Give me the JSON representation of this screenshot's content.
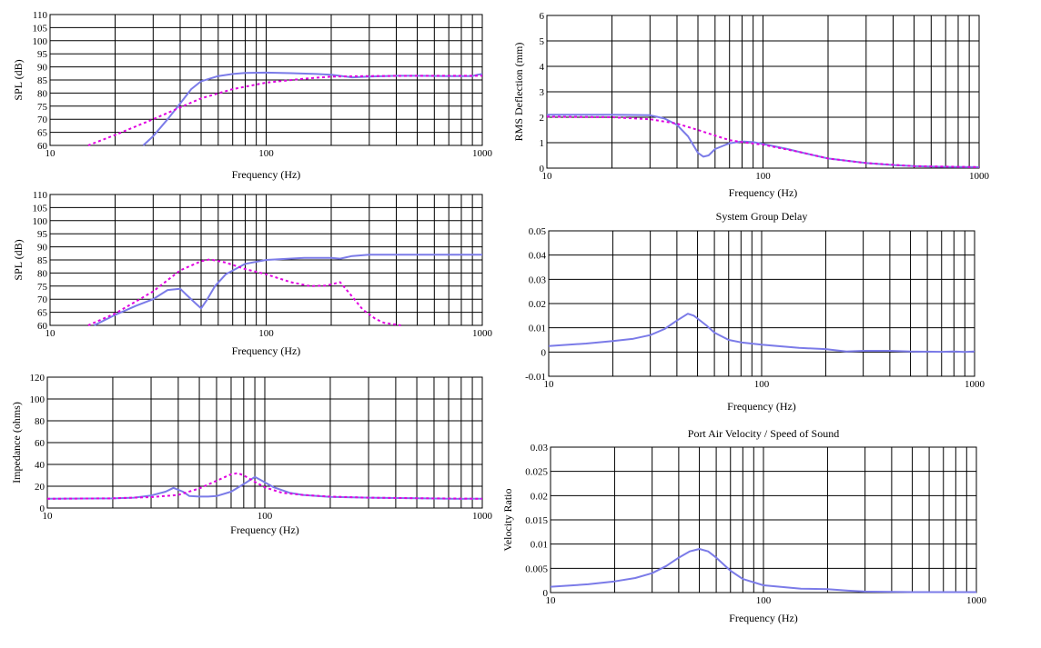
{
  "colors": {
    "series_solid": "#7b7be8",
    "series_dashed": "#e000e0",
    "grid": "#000000"
  },
  "chart_data": [
    {
      "id": "spl1",
      "type": "line",
      "xlabel": "Frequency (Hz)",
      "ylabel": "SPL (dB)",
      "xscale": "log",
      "xlim": [
        10,
        1000
      ],
      "ylim": [
        60,
        110
      ],
      "xticks": [
        10,
        100,
        1000
      ],
      "yticks": [
        60,
        65,
        70,
        75,
        80,
        85,
        90,
        95,
        100,
        105,
        110
      ],
      "series": [
        {
          "style": "solid",
          "points": [
            [
              27,
              60
            ],
            [
              30,
              63.5
            ],
            [
              35,
              70
            ],
            [
              40,
              76
            ],
            [
              45,
              81.5
            ],
            [
              50,
              84.5
            ],
            [
              60,
              86.5
            ],
            [
              70,
              87.3
            ],
            [
              80,
              87.7
            ],
            [
              100,
              87.8
            ],
            [
              130,
              87.6
            ],
            [
              170,
              87.3
            ],
            [
              200,
              87
            ],
            [
              250,
              86
            ],
            [
              300,
              86.3
            ],
            [
              400,
              86.6
            ],
            [
              500,
              86.6
            ],
            [
              700,
              86.5
            ],
            [
              900,
              86.5
            ],
            [
              950,
              87
            ],
            [
              1000,
              87.3
            ]
          ]
        },
        {
          "style": "dashed",
          "points": [
            [
              15,
              60
            ],
            [
              20,
              64
            ],
            [
              30,
              70
            ],
            [
              40,
              74.5
            ],
            [
              50,
              78
            ],
            [
              70,
              81.5
            ],
            [
              100,
              84
            ],
            [
              150,
              85.5
            ],
            [
              200,
              86.3
            ],
            [
              300,
              86.5
            ],
            [
              500,
              86.6
            ],
            [
              1000,
              86.6
            ]
          ]
        }
      ]
    },
    {
      "id": "spl2",
      "type": "line",
      "xlabel": "Frequency (Hz)",
      "ylabel": "SPL (dB)",
      "xscale": "log",
      "xlim": [
        10,
        1000
      ],
      "ylim": [
        60,
        110
      ],
      "xticks": [
        10,
        100,
        1000
      ],
      "yticks": [
        60,
        65,
        70,
        75,
        80,
        85,
        90,
        95,
        100,
        105,
        110
      ],
      "series": [
        {
          "style": "solid",
          "points": [
            [
              16,
              60
            ],
            [
              20,
              64
            ],
            [
              25,
              67.5
            ],
            [
              30,
              70
            ],
            [
              35,
              73.5
            ],
            [
              40,
              74
            ],
            [
              43,
              71.5
            ],
            [
              47,
              68.5
            ],
            [
              50,
              66.5
            ],
            [
              53,
              69.5
            ],
            [
              58,
              75
            ],
            [
              65,
              79.5
            ],
            [
              80,
              83.5
            ],
            [
              100,
              85
            ],
            [
              150,
              85.8
            ],
            [
              200,
              85.8
            ],
            [
              220,
              85.5
            ],
            [
              250,
              86.5
            ],
            [
              300,
              87
            ],
            [
              500,
              87
            ],
            [
              1000,
              87
            ]
          ]
        },
        {
          "style": "dashed",
          "points": [
            [
              15,
              60
            ],
            [
              20,
              64.5
            ],
            [
              30,
              73
            ],
            [
              40,
              81
            ],
            [
              50,
              84.5
            ],
            [
              55,
              85.2
            ],
            [
              65,
              84
            ],
            [
              80,
              81.5
            ],
            [
              100,
              79.5
            ],
            [
              130,
              76.5
            ],
            [
              160,
              75
            ],
            [
              190,
              75.2
            ],
            [
              220,
              76.5
            ],
            [
              250,
              71
            ],
            [
              280,
              66
            ],
            [
              320,
              62.5
            ],
            [
              350,
              61
            ],
            [
              420,
              60
            ]
          ]
        }
      ]
    },
    {
      "id": "imp",
      "type": "line",
      "xlabel": "Frequency (Hz)",
      "ylabel": "Impedance (ohms)",
      "xscale": "log",
      "xlim": [
        10,
        1000
      ],
      "ylim": [
        0,
        120
      ],
      "xticks": [
        10,
        100,
        1000
      ],
      "yticks": [
        0,
        20,
        40,
        60,
        80,
        100,
        120
      ],
      "series": [
        {
          "style": "solid",
          "points": [
            [
              10,
              8.5
            ],
            [
              20,
              8.8
            ],
            [
              25,
              9.5
            ],
            [
              30,
              11.5
            ],
            [
              35,
              15
            ],
            [
              38,
              18.5
            ],
            [
              42,
              15
            ],
            [
              45,
              11
            ],
            [
              50,
              10.5
            ],
            [
              55,
              10.5
            ],
            [
              60,
              11
            ],
            [
              70,
              15
            ],
            [
              80,
              22
            ],
            [
              90,
              28.5
            ],
            [
              95,
              26
            ],
            [
              110,
              19
            ],
            [
              130,
              14
            ],
            [
              150,
              12
            ],
            [
              200,
              10.2
            ],
            [
              300,
              9.5
            ],
            [
              500,
              9
            ],
            [
              700,
              8.6
            ],
            [
              800,
              8.4
            ],
            [
              850,
              8.5
            ],
            [
              1000,
              8.6
            ]
          ]
        },
        {
          "style": "dashed",
          "points": [
            [
              10,
              8.5
            ],
            [
              20,
              8.9
            ],
            [
              30,
              10
            ],
            [
              40,
              12
            ],
            [
              50,
              18
            ],
            [
              60,
              25
            ],
            [
              70,
              31
            ],
            [
              75,
              32
            ],
            [
              80,
              30
            ],
            [
              90,
              24
            ],
            [
              100,
              19
            ],
            [
              120,
              14
            ],
            [
              150,
              12
            ],
            [
              200,
              10.5
            ],
            [
              300,
              9.5
            ],
            [
              500,
              9
            ],
            [
              1000,
              8.5
            ]
          ]
        }
      ]
    },
    {
      "id": "rms",
      "type": "line",
      "xlabel": "Frequency (Hz)",
      "ylabel": "RMS Deflection (mm)",
      "xscale": "log",
      "xlim": [
        10,
        1000
      ],
      "ylim": [
        0,
        6
      ],
      "xticks": [
        10,
        100,
        1000
      ],
      "yticks": [
        0,
        1,
        2,
        3,
        4,
        5,
        6
      ],
      "series": [
        {
          "style": "solid",
          "points": [
            [
              10,
              2.1
            ],
            [
              20,
              2.1
            ],
            [
              30,
              2.08
            ],
            [
              35,
              1.95
            ],
            [
              40,
              1.7
            ],
            [
              45,
              1.25
            ],
            [
              50,
              0.6
            ],
            [
              53,
              0.45
            ],
            [
              56,
              0.5
            ],
            [
              60,
              0.75
            ],
            [
              70,
              0.98
            ],
            [
              80,
              1.05
            ],
            [
              90,
              1.02
            ],
            [
              100,
              0.95
            ],
            [
              130,
              0.75
            ],
            [
              150,
              0.62
            ],
            [
              200,
              0.38
            ],
            [
              300,
              0.2
            ],
            [
              400,
              0.12
            ],
            [
              500,
              0.08
            ],
            [
              700,
              0.05
            ],
            [
              1000,
              0.04
            ]
          ]
        },
        {
          "style": "dashed",
          "points": [
            [
              10,
              2.02
            ],
            [
              20,
              2.0
            ],
            [
              30,
              1.92
            ],
            [
              40,
              1.75
            ],
            [
              50,
              1.5
            ],
            [
              60,
              1.28
            ],
            [
              70,
              1.1
            ],
            [
              80,
              1.02
            ],
            [
              100,
              0.92
            ],
            [
              150,
              0.62
            ],
            [
              200,
              0.38
            ],
            [
              300,
              0.2
            ],
            [
              500,
              0.08
            ],
            [
              1000,
              0.04
            ]
          ]
        }
      ]
    },
    {
      "id": "gd",
      "type": "line",
      "title": "System Group Delay",
      "xlabel": "Frequency (Hz)",
      "ylabel": "",
      "xscale": "log",
      "xlim": [
        10,
        1000
      ],
      "ylim": [
        -0.01,
        0.05
      ],
      "xticks": [
        10,
        100,
        1000
      ],
      "yticks": [
        -0.01,
        0,
        0.01,
        0.02,
        0.03,
        0.04,
        0.05
      ],
      "ytick_labels": [
        "-0.01",
        "0",
        "0.01",
        "0.02",
        "0.03",
        "0.04",
        "0.05"
      ],
      "series": [
        {
          "style": "solid",
          "points": [
            [
              10,
              0.0025
            ],
            [
              15,
              0.0035
            ],
            [
              20,
              0.0045
            ],
            [
              25,
              0.0055
            ],
            [
              30,
              0.007
            ],
            [
              35,
              0.0095
            ],
            [
              40,
              0.013
            ],
            [
              45,
              0.0158
            ],
            [
              48,
              0.015
            ],
            [
              50,
              0.0138
            ],
            [
              55,
              0.011
            ],
            [
              60,
              0.008
            ],
            [
              70,
              0.005
            ],
            [
              80,
              0.004
            ],
            [
              100,
              0.003
            ],
            [
              150,
              0.0017
            ],
            [
              200,
              0.0012
            ],
            [
              220,
              0.0008
            ],
            [
              250,
              0.0002
            ],
            [
              300,
              0.0005
            ],
            [
              400,
              0.0005
            ],
            [
              500,
              0.0002
            ],
            [
              700,
              0.0001
            ],
            [
              800,
              0.0002
            ],
            [
              900,
              0
            ],
            [
              1000,
              0.0002
            ]
          ]
        }
      ]
    },
    {
      "id": "port",
      "type": "line",
      "title": "Port Air Velocity / Speed of Sound",
      "xlabel": "Frequency (Hz)",
      "ylabel": "Velocity Ratio",
      "xscale": "log",
      "xlim": [
        10,
        1000
      ],
      "ylim": [
        0,
        0.03
      ],
      "xticks": [
        10,
        100,
        1000
      ],
      "yticks": [
        0,
        0.005,
        0.01,
        0.015,
        0.02,
        0.025,
        0.03
      ],
      "ytick_labels": [
        "0",
        "0.005",
        "0.01",
        "0.015",
        "0.02",
        "0.025",
        "0.03"
      ],
      "series": [
        {
          "style": "solid",
          "points": [
            [
              10,
              0.0012
            ],
            [
              15,
              0.0017
            ],
            [
              20,
              0.0023
            ],
            [
              25,
              0.003
            ],
            [
              30,
              0.004
            ],
            [
              35,
              0.0055
            ],
            [
              40,
              0.0072
            ],
            [
              45,
              0.0085
            ],
            [
              50,
              0.009
            ],
            [
              55,
              0.0085
            ],
            [
              60,
              0.0072
            ],
            [
              70,
              0.0045
            ],
            [
              80,
              0.0028
            ],
            [
              100,
              0.0015
            ],
            [
              150,
              0.0008
            ],
            [
              200,
              0.0007
            ],
            [
              250,
              0.0004
            ],
            [
              300,
              0.0002
            ],
            [
              500,
              0.0001
            ],
            [
              1000,
              0.0001
            ]
          ]
        }
      ]
    }
  ]
}
